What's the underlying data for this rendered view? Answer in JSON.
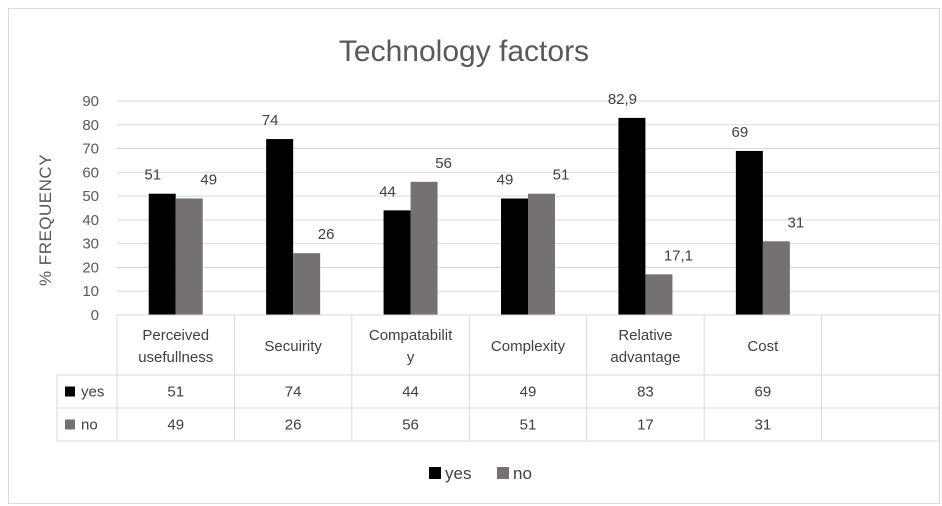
{
  "chart_data": {
    "type": "bar",
    "title": "Technology factors",
    "ylabel": "% FREQUENCY",
    "xlabel": "",
    "ylim": [
      0,
      90
    ],
    "yticks": [
      0,
      10,
      20,
      30,
      40,
      50,
      60,
      70,
      80,
      90
    ],
    "grid": true,
    "legend": "bottom",
    "categories": [
      [
        "Perceived",
        "usefullness"
      ],
      [
        "Secuirity"
      ],
      [
        "Compatabilit",
        "y"
      ],
      [
        "Complexity"
      ],
      [
        "Relative",
        "advantage"
      ],
      [
        "Cost"
      ]
    ],
    "series": [
      {
        "name": "yes",
        "color": "#000000",
        "values": [
          51,
          74,
          44,
          49,
          82.9,
          69
        ],
        "data_labels": [
          "51",
          "74",
          "44",
          "49",
          "82,9",
          "69"
        ],
        "table_values": [
          "51",
          "74",
          "44",
          "49",
          "83",
          "69"
        ]
      },
      {
        "name": "no",
        "color": "#767171",
        "values": [
          49,
          26,
          56,
          51,
          17.1,
          31
        ],
        "data_labels": [
          "49",
          "26",
          "56",
          "51",
          "17,1",
          "31"
        ],
        "table_values": [
          "49",
          "26",
          "56",
          "51",
          "17",
          "31"
        ]
      }
    ]
  }
}
